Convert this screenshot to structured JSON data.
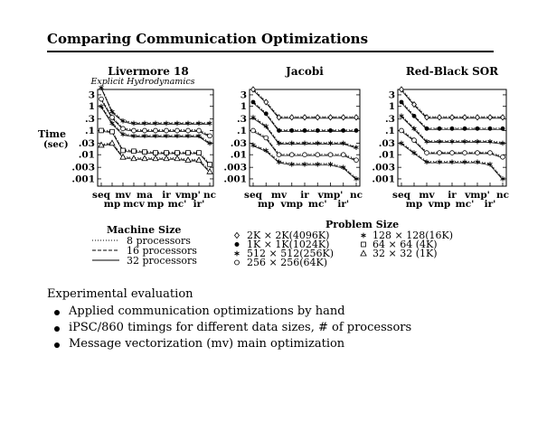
{
  "page": {
    "title": "Comparing Communication Optimizations",
    "bullets_heading": "Experimental evaluation",
    "bullets": [
      "Applied communication optimizations by hand",
      "iPSC/860 timings for different data sizes, # of processors",
      "Message vectorization (mv) main optimization"
    ]
  },
  "y_axis": {
    "label_line1": "Time",
    "label_line2": "(sec)",
    "scale": "log",
    "ticks": [
      3,
      1,
      0.3,
      0.1,
      0.03,
      0.01,
      0.003,
      0.001
    ],
    "tick_labels": [
      "3",
      "1",
      ".3",
      ".1",
      ".03",
      ".01",
      ".003",
      ".001"
    ]
  },
  "legend_machine": {
    "title": "Machine Size",
    "items": [
      {
        "style": "dotted",
        "label": "8 processors"
      },
      {
        "style": "dashed",
        "label": "16 processors"
      },
      {
        "style": "solid",
        "label": "32 processors"
      }
    ]
  },
  "legend_problem": {
    "title": "Problem Size",
    "items": [
      {
        "marker": "diamond",
        "label": "2K × 2K(4096K)"
      },
      {
        "marker": "filled-circle",
        "label": "1K × 1K(1024K)"
      },
      {
        "marker": "asterisk",
        "label": "512 × 512(256K)"
      },
      {
        "marker": "circle",
        "label": "256 × 256(64K)"
      },
      {
        "marker": "asterisk",
        "label": "128 × 128(16K)"
      },
      {
        "marker": "square",
        "label": "64 × 64    (4K)"
      },
      {
        "marker": "triangle",
        "label": "32 × 32    (1K)"
      }
    ]
  },
  "chart_data": [
    {
      "type": "line",
      "title": "Livermore 18",
      "subtitle": "Explicit Hydrodynamics",
      "yscale": "log",
      "ylim": [
        0.0005,
        5
      ],
      "x_tick_rows": [
        [
          "seq",
          "mv",
          "ma",
          "ir",
          "vmp'",
          "nc"
        ],
        [
          "mp",
          "mcv",
          "mp",
          "mc'",
          "ir'"
        ]
      ],
      "x_positions": [
        "seq",
        "mp",
        "mv",
        "mcv",
        "ma",
        "mp",
        "ir",
        "mc'",
        "vmp'",
        "ir'",
        "nc"
      ],
      "series": [
        {
          "marker": "asterisk",
          "values": [
            6,
            0.6,
            0.25,
            0.2,
            0.2,
            0.2,
            0.2,
            0.2,
            0.2,
            0.2,
            0.2
          ]
        },
        {
          "marker": "circle",
          "values": [
            2,
            0.35,
            0.12,
            0.1,
            0.1,
            0.1,
            0.1,
            0.1,
            0.1,
            0.1,
            0.06
          ]
        },
        {
          "marker": "asterisk",
          "values": [
            1,
            0.2,
            0.07,
            0.06,
            0.06,
            0.06,
            0.06,
            0.06,
            0.06,
            0.06,
            0.03
          ]
        },
        {
          "marker": "square",
          "values": [
            0.1,
            0.09,
            0.015,
            0.014,
            0.013,
            0.012,
            0.012,
            0.012,
            0.012,
            0.012,
            0.004
          ]
        },
        {
          "marker": "triangle",
          "values": [
            0.025,
            0.03,
            0.008,
            0.007,
            0.007,
            0.007,
            0.007,
            0.007,
            0.006,
            0.006,
            0.002
          ]
        }
      ]
    },
    {
      "type": "line",
      "title": "Jacobi",
      "yscale": "log",
      "ylim": [
        0.0005,
        5
      ],
      "x_tick_rows": [
        [
          "seq",
          "mv",
          "ir",
          "vmp'",
          "nc"
        ],
        [
          "mp",
          "vmp",
          "mc'",
          "ir'"
        ]
      ],
      "x_positions": [
        "seq",
        "mp",
        "mv",
        "vmp",
        "ir",
        "mc'",
        "vmp'",
        "ir'",
        "nc"
      ],
      "series": [
        {
          "marker": "diamond",
          "values": [
            5,
            1.5,
            0.35,
            0.35,
            0.35,
            0.35,
            0.35,
            0.35,
            0.35
          ]
        },
        {
          "marker": "filled-circle",
          "values": [
            1.5,
            0.5,
            0.1,
            0.1,
            0.1,
            0.1,
            0.1,
            0.1,
            0.1
          ]
        },
        {
          "marker": "asterisk",
          "values": [
            0.35,
            0.15,
            0.03,
            0.03,
            0.03,
            0.03,
            0.03,
            0.03,
            0.02
          ]
        },
        {
          "marker": "circle",
          "values": [
            0.1,
            0.05,
            0.01,
            0.01,
            0.01,
            0.01,
            0.01,
            0.01,
            0.006
          ]
        },
        {
          "marker": "asterisk",
          "values": [
            0.025,
            0.015,
            0.005,
            0.004,
            0.004,
            0.004,
            0.004,
            0.003,
            0.001
          ]
        }
      ]
    },
    {
      "type": "line",
      "title": "Red-Black SOR",
      "yscale": "log",
      "ylim": [
        0.0005,
        5
      ],
      "x_tick_rows": [
        [
          "seq",
          "mv",
          "ir",
          "vmp'",
          "nc"
        ],
        [
          "mp",
          "vmp",
          "mc'",
          "ir'"
        ]
      ],
      "x_positions": [
        "seq",
        "mp",
        "mv",
        "vmp",
        "ir",
        "mc'",
        "vmp'",
        "ir'",
        "nc"
      ],
      "series": [
        {
          "marker": "diamond",
          "values": [
            5,
            1.2,
            0.35,
            0.35,
            0.35,
            0.35,
            0.35,
            0.35,
            0.35
          ]
        },
        {
          "marker": "filled-circle",
          "values": [
            1.5,
            0.4,
            0.12,
            0.12,
            0.12,
            0.12,
            0.12,
            0.12,
            0.12
          ]
        },
        {
          "marker": "asterisk",
          "values": [
            0.4,
            0.12,
            0.035,
            0.035,
            0.035,
            0.035,
            0.035,
            0.035,
            0.03
          ]
        },
        {
          "marker": "circle",
          "values": [
            0.1,
            0.04,
            0.012,
            0.012,
            0.012,
            0.012,
            0.012,
            0.012,
            0.008
          ]
        },
        {
          "marker": "asterisk",
          "values": [
            0.03,
            0.012,
            0.005,
            0.005,
            0.005,
            0.005,
            0.005,
            0.004,
            0.001
          ]
        }
      ]
    }
  ]
}
